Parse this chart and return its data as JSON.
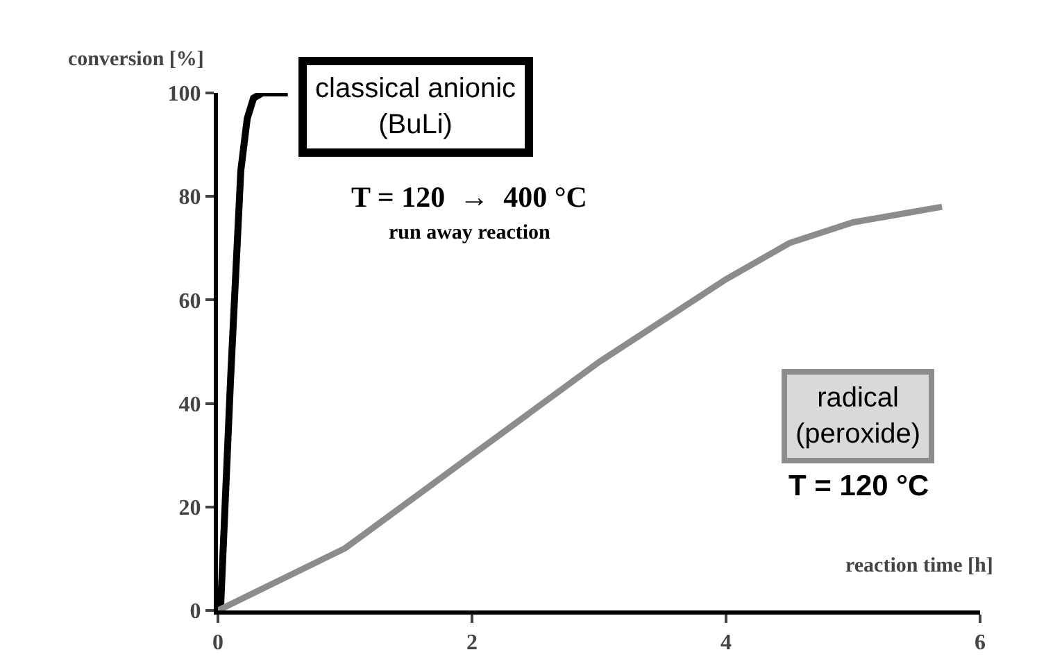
{
  "chart_data": {
    "type": "line",
    "xlabel": "reaction time [h]",
    "ylabel": "conversion [%]",
    "xlim": [
      0,
      6
    ],
    "ylim": [
      0,
      100
    ],
    "xticks": [
      0,
      2,
      4,
      6
    ],
    "yticks": [
      0,
      20,
      40,
      60,
      80,
      100
    ],
    "grid": false,
    "legend": false,
    "marker": "none",
    "line_style": "solid",
    "series": [
      {
        "name": "classical anionic (BuLi)",
        "color": "#000000",
        "x": [
          0.02,
          0.1,
          0.18,
          0.23,
          0.28,
          0.35,
          0.55
        ],
        "values": [
          0,
          45,
          85,
          95,
          99,
          100,
          100
        ]
      },
      {
        "name": "radical (peroxide)",
        "color": "#8c8c8c",
        "x": [
          0,
          1,
          2,
          3,
          4,
          4.5,
          5,
          5.7
        ],
        "values": [
          0,
          12,
          30,
          48,
          64,
          71,
          75,
          78
        ]
      }
    ],
    "annotations": [
      "T = 120  →  400 °C",
      "run away reaction",
      "T = 120 °C"
    ]
  }
}
